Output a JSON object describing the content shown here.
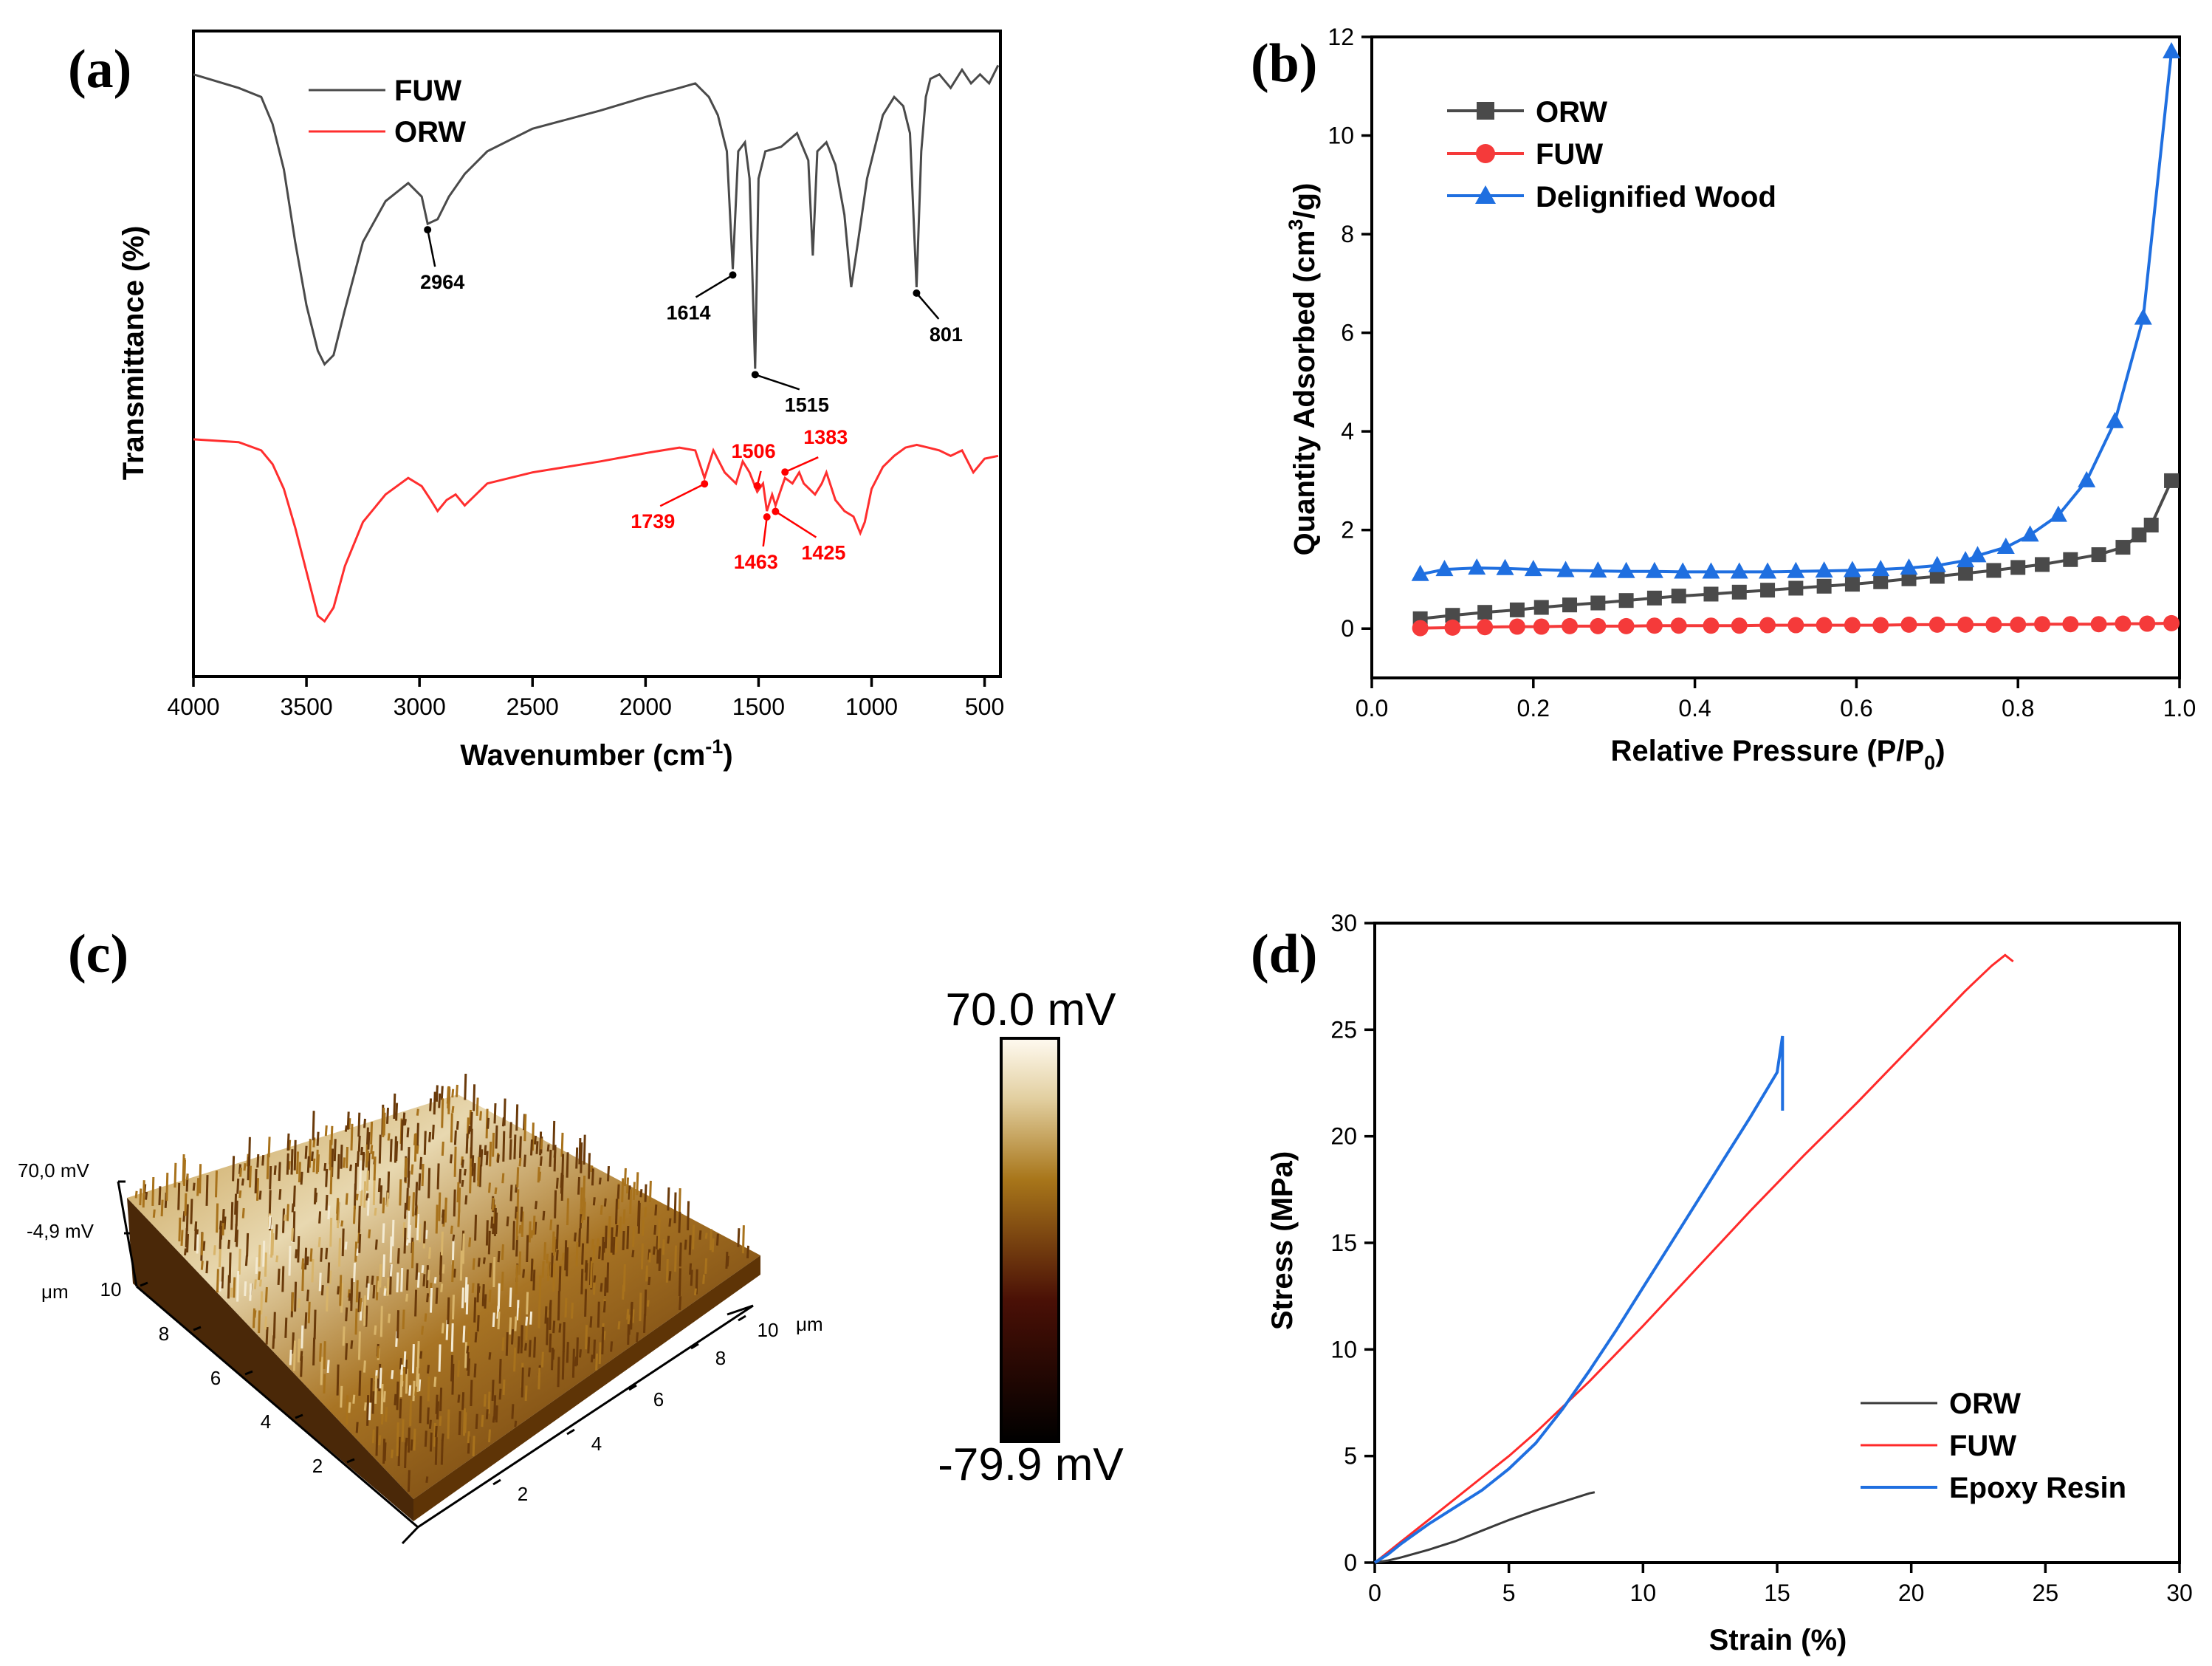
{
  "panels": {
    "a": "(a)",
    "b": "(b)",
    "c": "(c)",
    "d": "(d)"
  },
  "chart_data": [
    {
      "id": "a",
      "type": "line",
      "title": "",
      "xlabel": "Wavenumber (cm",
      "xlabel_sup": "-1",
      "xlabel_end": ")",
      "ylabel": "Transmittance (%)",
      "xlim": [
        4000,
        430
      ],
      "xticks": [
        4000,
        3500,
        3000,
        2500,
        2000,
        1500,
        1000,
        500
      ],
      "legend": [
        "FUW",
        "ORW"
      ],
      "series": [
        {
          "name": "FUW",
          "color": "#4a4a4a",
          "x": [
            4000,
            3800,
            3700,
            3650,
            3600,
            3550,
            3500,
            3450,
            3420,
            3380,
            3330,
            3250,
            3150,
            3050,
            2990,
            2964,
            2920,
            2870,
            2800,
            2700,
            2500,
            2200,
            2000,
            1850,
            1780,
            1720,
            1680,
            1640,
            1614,
            1590,
            1560,
            1540,
            1515,
            1500,
            1470,
            1400,
            1330,
            1280,
            1260,
            1240,
            1200,
            1160,
            1120,
            1090,
            1060,
            1020,
            980,
            950,
            900,
            860,
            830,
            801,
            780,
            760,
            740,
            700,
            650,
            600,
            560,
            520,
            480,
            440
          ],
          "y": [
            95,
            92,
            90,
            84,
            74,
            58,
            44,
            34,
            31,
            33,
            43,
            58,
            67,
            71,
            68,
            62,
            63,
            68,
            73,
            78,
            83,
            87,
            90,
            92,
            93,
            90,
            86,
            78,
            52,
            78,
            80,
            72,
            30,
            72,
            78,
            79,
            82,
            76,
            55,
            78,
            80,
            75,
            64,
            48,
            58,
            72,
            80,
            86,
            90,
            88,
            82,
            48,
            78,
            90,
            94,
            95,
            92,
            96,
            93,
            95,
            93,
            97
          ]
        },
        {
          "name": "ORW",
          "color": "#ff2e2e",
          "x": [
            4000,
            3800,
            3700,
            3650,
            3600,
            3550,
            3500,
            3450,
            3420,
            3380,
            3330,
            3250,
            3150,
            3050,
            2990,
            2950,
            2920,
            2880,
            2840,
            2800,
            2700,
            2500,
            2200,
            2000,
            1850,
            1780,
            1739,
            1700,
            1650,
            1600,
            1570,
            1540,
            1506,
            1480,
            1463,
            1440,
            1425,
            1400,
            1383,
            1350,
            1320,
            1300,
            1250,
            1220,
            1200,
            1160,
            1120,
            1080,
            1050,
            1030,
            1000,
            950,
            900,
            850,
            800,
            750,
            700,
            650,
            600,
            550,
            500,
            440
          ],
          "y": [
            96,
            95,
            92,
            87,
            78,
            64,
            48,
            32,
            30,
            35,
            50,
            66,
            76,
            82,
            79,
            74,
            70,
            74,
            76,
            72,
            80,
            84,
            88,
            91,
            93,
            92,
            82,
            92,
            84,
            80,
            88,
            84,
            77,
            80,
            70,
            76,
            72,
            78,
            82,
            80,
            84,
            80,
            76,
            80,
            84,
            74,
            70,
            68,
            62,
            66,
            78,
            86,
            90,
            93,
            94,
            93,
            92,
            90,
            92,
            84,
            89,
            90
          ]
        }
      ],
      "annotations": [
        {
          "text": "2964",
          "series": "FUW",
          "x": 2964,
          "color": "#000"
        },
        {
          "text": "1614",
          "series": "FUW",
          "x": 1614,
          "color": "#000"
        },
        {
          "text": "1515",
          "series": "FUW",
          "x": 1515,
          "color": "#000"
        },
        {
          "text": "801",
          "series": "FUW",
          "x": 801,
          "color": "#000"
        },
        {
          "text": "1739",
          "series": "ORW",
          "x": 1739,
          "color": "#ff0000"
        },
        {
          "text": "1506",
          "series": "ORW",
          "x": 1506,
          "color": "#ff0000"
        },
        {
          "text": "1383",
          "series": "ORW",
          "x": 1383,
          "color": "#ff0000"
        },
        {
          "text": "1463",
          "series": "ORW",
          "x": 1463,
          "color": "#ff0000"
        },
        {
          "text": "1425",
          "series": "ORW",
          "x": 1425,
          "color": "#ff0000"
        }
      ]
    },
    {
      "id": "b",
      "type": "line",
      "title": "",
      "xlabel": "Relative Pressure (P/P",
      "xlabel_sub": "0",
      "xlabel_end": ")",
      "ylabel": "Quantity Adsorbed (cm",
      "ylabel_sup": "3",
      "ylabel_end": "/g)",
      "xlim": [
        0.0,
        1.0
      ],
      "ylim": [
        -1,
        12
      ],
      "xticks": [
        0.0,
        0.2,
        0.4,
        0.6,
        0.8,
        1.0
      ],
      "xticklabels": [
        "0.0",
        "0.2",
        "0.4",
        "0.6",
        "0.8",
        "1.0"
      ],
      "yticks": [
        0,
        2,
        4,
        6,
        8,
        10,
        12
      ],
      "legend": [
        "ORW",
        "FUW",
        "Delignified Wood"
      ],
      "series": [
        {
          "name": "ORW",
          "color": "#4a4a4a",
          "marker": "square",
          "x": [
            0.06,
            0.1,
            0.14,
            0.18,
            0.21,
            0.245,
            0.28,
            0.315,
            0.35,
            0.38,
            0.42,
            0.455,
            0.49,
            0.525,
            0.56,
            0.595,
            0.63,
            0.665,
            0.7,
            0.735,
            0.77,
            0.8,
            0.83,
            0.865,
            0.9,
            0.93,
            0.95,
            0.965,
            0.99
          ],
          "y": [
            0.2,
            0.27,
            0.33,
            0.38,
            0.43,
            0.48,
            0.52,
            0.57,
            0.62,
            0.66,
            0.7,
            0.74,
            0.78,
            0.82,
            0.86,
            0.9,
            0.95,
            1.01,
            1.06,
            1.12,
            1.18,
            1.24,
            1.3,
            1.4,
            1.5,
            1.65,
            1.9,
            2.1,
            3.0
          ]
        },
        {
          "name": "FUW",
          "color": "#f53a3a",
          "marker": "circle",
          "x": [
            0.06,
            0.1,
            0.14,
            0.18,
            0.21,
            0.245,
            0.28,
            0.315,
            0.35,
            0.38,
            0.42,
            0.455,
            0.49,
            0.525,
            0.56,
            0.595,
            0.63,
            0.665,
            0.7,
            0.735,
            0.77,
            0.8,
            0.83,
            0.865,
            0.9,
            0.93,
            0.96,
            0.99
          ],
          "y": [
            0.01,
            0.02,
            0.03,
            0.04,
            0.04,
            0.05,
            0.05,
            0.05,
            0.06,
            0.06,
            0.06,
            0.06,
            0.07,
            0.07,
            0.07,
            0.07,
            0.07,
            0.08,
            0.08,
            0.08,
            0.08,
            0.08,
            0.09,
            0.09,
            0.09,
            0.1,
            0.1,
            0.11
          ]
        },
        {
          "name": "Delignified Wood",
          "color": "#1f6fe0",
          "marker": "triangle",
          "x": [
            0.06,
            0.09,
            0.13,
            0.165,
            0.2,
            0.24,
            0.28,
            0.315,
            0.35,
            0.385,
            0.42,
            0.455,
            0.49,
            0.525,
            0.56,
            0.595,
            0.63,
            0.665,
            0.7,
            0.735,
            0.75,
            0.785,
            0.815,
            0.85,
            0.885,
            0.92,
            0.955,
            0.99
          ],
          "y": [
            1.1,
            1.2,
            1.23,
            1.22,
            1.2,
            1.18,
            1.17,
            1.16,
            1.16,
            1.15,
            1.15,
            1.15,
            1.15,
            1.16,
            1.17,
            1.18,
            1.2,
            1.23,
            1.28,
            1.38,
            1.48,
            1.65,
            1.9,
            2.3,
            3.0,
            4.2,
            6.3,
            11.7
          ]
        }
      ]
    },
    {
      "id": "d",
      "type": "line",
      "title": "",
      "xlabel": "Strain (%)",
      "ylabel": "Stress (MPa)",
      "xlim": [
        0,
        30
      ],
      "ylim": [
        0,
        30
      ],
      "xticks": [
        0,
        5,
        10,
        15,
        20,
        25,
        30
      ],
      "yticks": [
        0,
        5,
        10,
        15,
        20,
        25,
        30
      ],
      "legend": [
        "ORW",
        "FUW",
        "Epoxy Resin"
      ],
      "series": [
        {
          "name": "ORW",
          "color": "#3a3a3a",
          "x": [
            0,
            0.5,
            1,
            2,
            3,
            4,
            5,
            6,
            7,
            8,
            8.2
          ],
          "y": [
            0,
            0.1,
            0.25,
            0.6,
            1.0,
            1.5,
            2.0,
            2.45,
            2.85,
            3.25,
            3.3
          ]
        },
        {
          "name": "FUW",
          "color": "#ff2a2a",
          "x": [
            0,
            0.5,
            1,
            2,
            3,
            4,
            5,
            6,
            7,
            8,
            9,
            10,
            12,
            14,
            16,
            18,
            20,
            21,
            22,
            23,
            23.5,
            23.8
          ],
          "y": [
            0,
            0.5,
            1.0,
            2.0,
            3.0,
            4.0,
            5.0,
            6.1,
            7.3,
            8.5,
            9.8,
            11.1,
            13.8,
            16.5,
            19.1,
            21.6,
            24.2,
            25.5,
            26.8,
            28.0,
            28.5,
            28.2
          ]
        },
        {
          "name": "Epoxy Resin",
          "color": "#1f6fe0",
          "x": [
            0,
            0.5,
            1,
            2,
            3,
            4,
            5,
            6,
            7,
            8,
            9,
            10,
            11,
            12,
            13,
            14,
            15,
            15.2,
            15.2
          ],
          "y": [
            0,
            0.4,
            0.9,
            1.8,
            2.6,
            3.4,
            4.4,
            5.6,
            7.2,
            9.0,
            10.9,
            12.9,
            14.9,
            16.9,
            18.9,
            20.9,
            23.0,
            24.7,
            21.2
          ]
        }
      ]
    }
  ],
  "afm": {
    "z_top": "70,0 mV",
    "z_mid": "-4,9 mV",
    "y_unit": "μm",
    "y_ticks": [
      "10",
      "8",
      "6",
      "4",
      "2"
    ],
    "x_ticks": [
      "2",
      "4",
      "6",
      "8",
      "10"
    ],
    "x_unit": "μm",
    "colorbar_max": "70.0 mV",
    "colorbar_min": "-79.9 mV",
    "colors": {
      "low": "#000000",
      "mid_dark": "#5a1408",
      "mid": "#a8761a",
      "high": "#fffaf0"
    }
  }
}
